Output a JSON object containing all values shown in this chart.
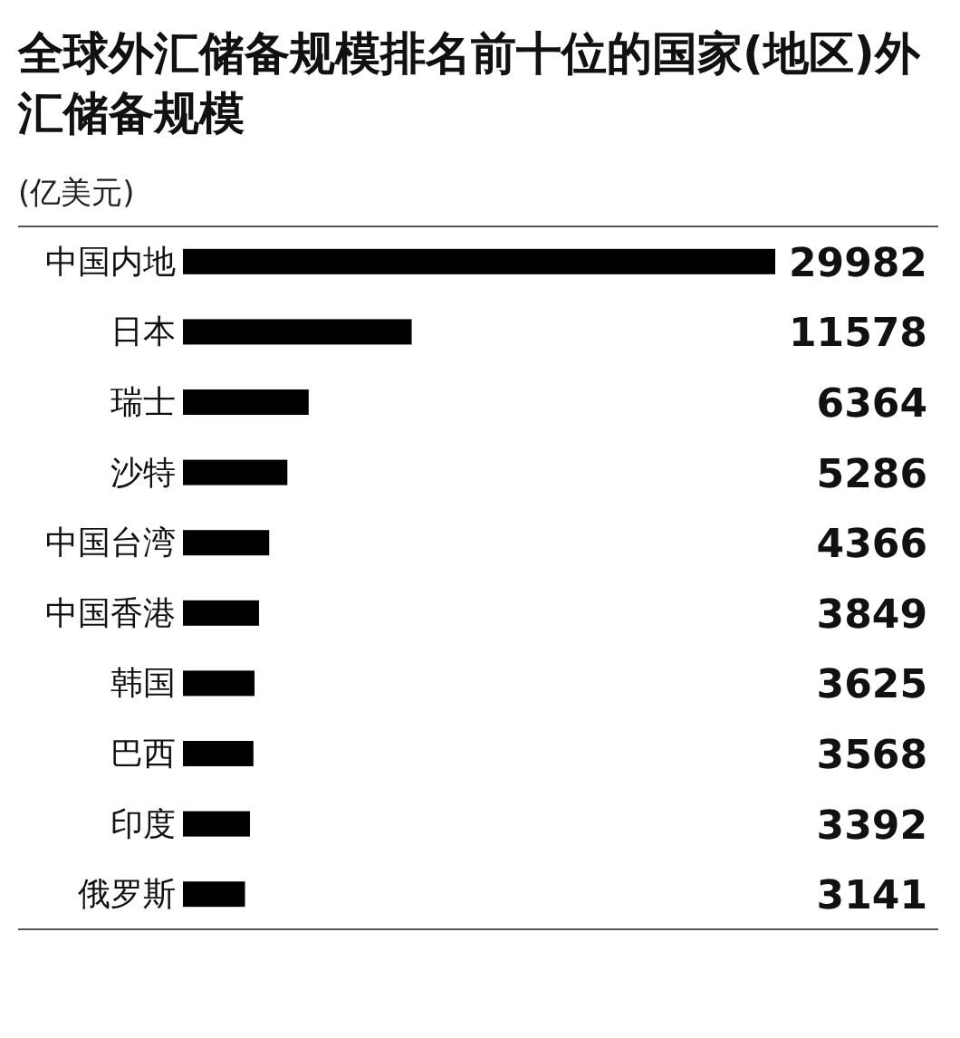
{
  "chart_data": {
    "type": "bar",
    "orientation": "horizontal",
    "title": "全球外汇储备规模排名前十位的国家(地区)外汇储备规模",
    "subtitle": "(亿美元)",
    "categories": [
      "中国内地",
      "日本",
      "瑞士",
      "沙特",
      "中国台湾",
      "中国香港",
      "韩国",
      "巴西",
      "印度",
      "俄罗斯"
    ],
    "values": [
      29982,
      11578,
      6364,
      5286,
      4366,
      3849,
      3625,
      3568,
      3392,
      3141
    ],
    "color": "#000000",
    "data_labels": true
  }
}
